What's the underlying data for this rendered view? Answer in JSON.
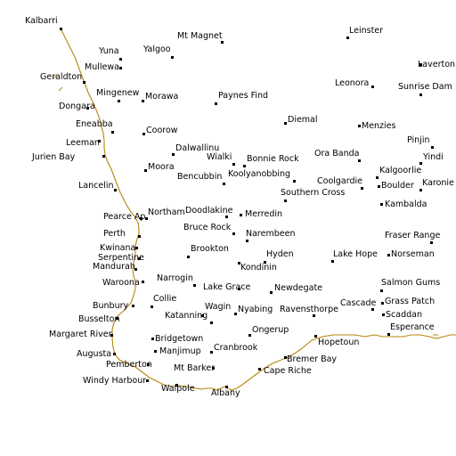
{
  "map": {
    "coast_color": "#b8860b",
    "places": [
      {
        "id": "kalbarri",
        "name": "Kalbarri"
      },
      {
        "id": "leinster",
        "name": "Leinster"
      },
      {
        "id": "yuna",
        "name": "Yuna"
      },
      {
        "id": "yalgoo",
        "name": "Yalgoo"
      },
      {
        "id": "mt-magnet",
        "name": "Mt Magnet"
      },
      {
        "id": "mullewa",
        "name": "Mullewa"
      },
      {
        "id": "laverton",
        "name": "Laverton"
      },
      {
        "id": "geraldton",
        "name": "Geraldton"
      },
      {
        "id": "leonora",
        "name": "Leonora"
      },
      {
        "id": "sunrise-dam",
        "name": "Sunrise Dam"
      },
      {
        "id": "mingenew",
        "name": "Mingenew"
      },
      {
        "id": "morawa",
        "name": "Morawa"
      },
      {
        "id": "paynes-find",
        "name": "Paynes Find"
      },
      {
        "id": "dongara",
        "name": "Dongara"
      },
      {
        "id": "diemal",
        "name": "Diemal"
      },
      {
        "id": "menzies",
        "name": "Menzies"
      },
      {
        "id": "eneabba",
        "name": "Eneabba"
      },
      {
        "id": "coorow",
        "name": "Coorow"
      },
      {
        "id": "leeman",
        "name": "Leeman"
      },
      {
        "id": "pinjin",
        "name": "Pinjin"
      },
      {
        "id": "dalwallinu",
        "name": "Dalwallinu"
      },
      {
        "id": "jurien-bay",
        "name": "Jurien Bay"
      },
      {
        "id": "wialki",
        "name": "Wialki"
      },
      {
        "id": "bonnie-rock",
        "name": "Bonnie Rock"
      },
      {
        "id": "ora-banda",
        "name": "Ora Banda"
      },
      {
        "id": "yindi",
        "name": "Yindi"
      },
      {
        "id": "moora",
        "name": "Moora"
      },
      {
        "id": "kalgoorlie",
        "name": "Kalgoorlie"
      },
      {
        "id": "koolyanobbing",
        "name": "Koolyanobbing"
      },
      {
        "id": "bencubbin",
        "name": "Bencubbin"
      },
      {
        "id": "coolgardie",
        "name": "Coolgardie"
      },
      {
        "id": "boulder",
        "name": "Boulder"
      },
      {
        "id": "karonie",
        "name": "Karonie"
      },
      {
        "id": "lancelin",
        "name": "Lancelin"
      },
      {
        "id": "southern-cross",
        "name": "Southern Cross"
      },
      {
        "id": "kambalda",
        "name": "Kambalda"
      },
      {
        "id": "doodlakine",
        "name": "Doodlakine"
      },
      {
        "id": "northam",
        "name": "Northam"
      },
      {
        "id": "merredin",
        "name": "Merredin"
      },
      {
        "id": "pearce-ap",
        "name": "Pearce Ap"
      },
      {
        "id": "bruce-rock",
        "name": "Bruce Rock"
      },
      {
        "id": "perth",
        "name": "Perth"
      },
      {
        "id": "narembeen",
        "name": "Narembeen"
      },
      {
        "id": "fraser-range",
        "name": "Fraser Range"
      },
      {
        "id": "kwinana",
        "name": "Kwinana"
      },
      {
        "id": "brookton",
        "name": "Brookton"
      },
      {
        "id": "norseman",
        "name": "Norseman"
      },
      {
        "id": "serpentine",
        "name": "Serpentine"
      },
      {
        "id": "hyden",
        "name": "Hyden"
      },
      {
        "id": "lake-hope",
        "name": "Lake Hope"
      },
      {
        "id": "mandurah",
        "name": "Mandurah"
      },
      {
        "id": "kondinin",
        "name": "Kondinin"
      },
      {
        "id": "narrogin",
        "name": "Narrogin"
      },
      {
        "id": "waroona",
        "name": "Waroona"
      },
      {
        "id": "salmon-gums",
        "name": "Salmon Gums"
      },
      {
        "id": "lake-grace",
        "name": "Lake Grace"
      },
      {
        "id": "newdegate",
        "name": "Newdegate"
      },
      {
        "id": "collie",
        "name": "Collie"
      },
      {
        "id": "grass-patch",
        "name": "Grass Patch"
      },
      {
        "id": "cascade",
        "name": "Cascade"
      },
      {
        "id": "wagin",
        "name": "Wagin"
      },
      {
        "id": "bunbury",
        "name": "Bunbury"
      },
      {
        "id": "nyabing",
        "name": "Nyabing"
      },
      {
        "id": "ravensthorpe",
        "name": "Ravensthorpe"
      },
      {
        "id": "busselton",
        "name": "Busselton"
      },
      {
        "id": "scaddan",
        "name": "Scaddan"
      },
      {
        "id": "katanning",
        "name": "Katanning"
      },
      {
        "id": "esperance",
        "name": "Esperance"
      },
      {
        "id": "ongerup",
        "name": "Ongerup"
      },
      {
        "id": "margaret-river",
        "name": "Margaret River"
      },
      {
        "id": "bridgetown",
        "name": "Bridgetown"
      },
      {
        "id": "hopetoun",
        "name": "Hopetoun"
      },
      {
        "id": "cranbrook",
        "name": "Cranbrook"
      },
      {
        "id": "augusta",
        "name": "Augusta"
      },
      {
        "id": "manjimup",
        "name": "Manjimup"
      },
      {
        "id": "bremer-bay",
        "name": "Bremer Bay"
      },
      {
        "id": "pemberton",
        "name": "Pemberton"
      },
      {
        "id": "mt-barker",
        "name": "Mt Barker"
      },
      {
        "id": "cape-riche",
        "name": "Cape Riche"
      },
      {
        "id": "windy-harbour",
        "name": "Windy Harbour"
      },
      {
        "id": "walpole",
        "name": "Walpole"
      },
      {
        "id": "albany",
        "name": "Albany"
      }
    ]
  }
}
